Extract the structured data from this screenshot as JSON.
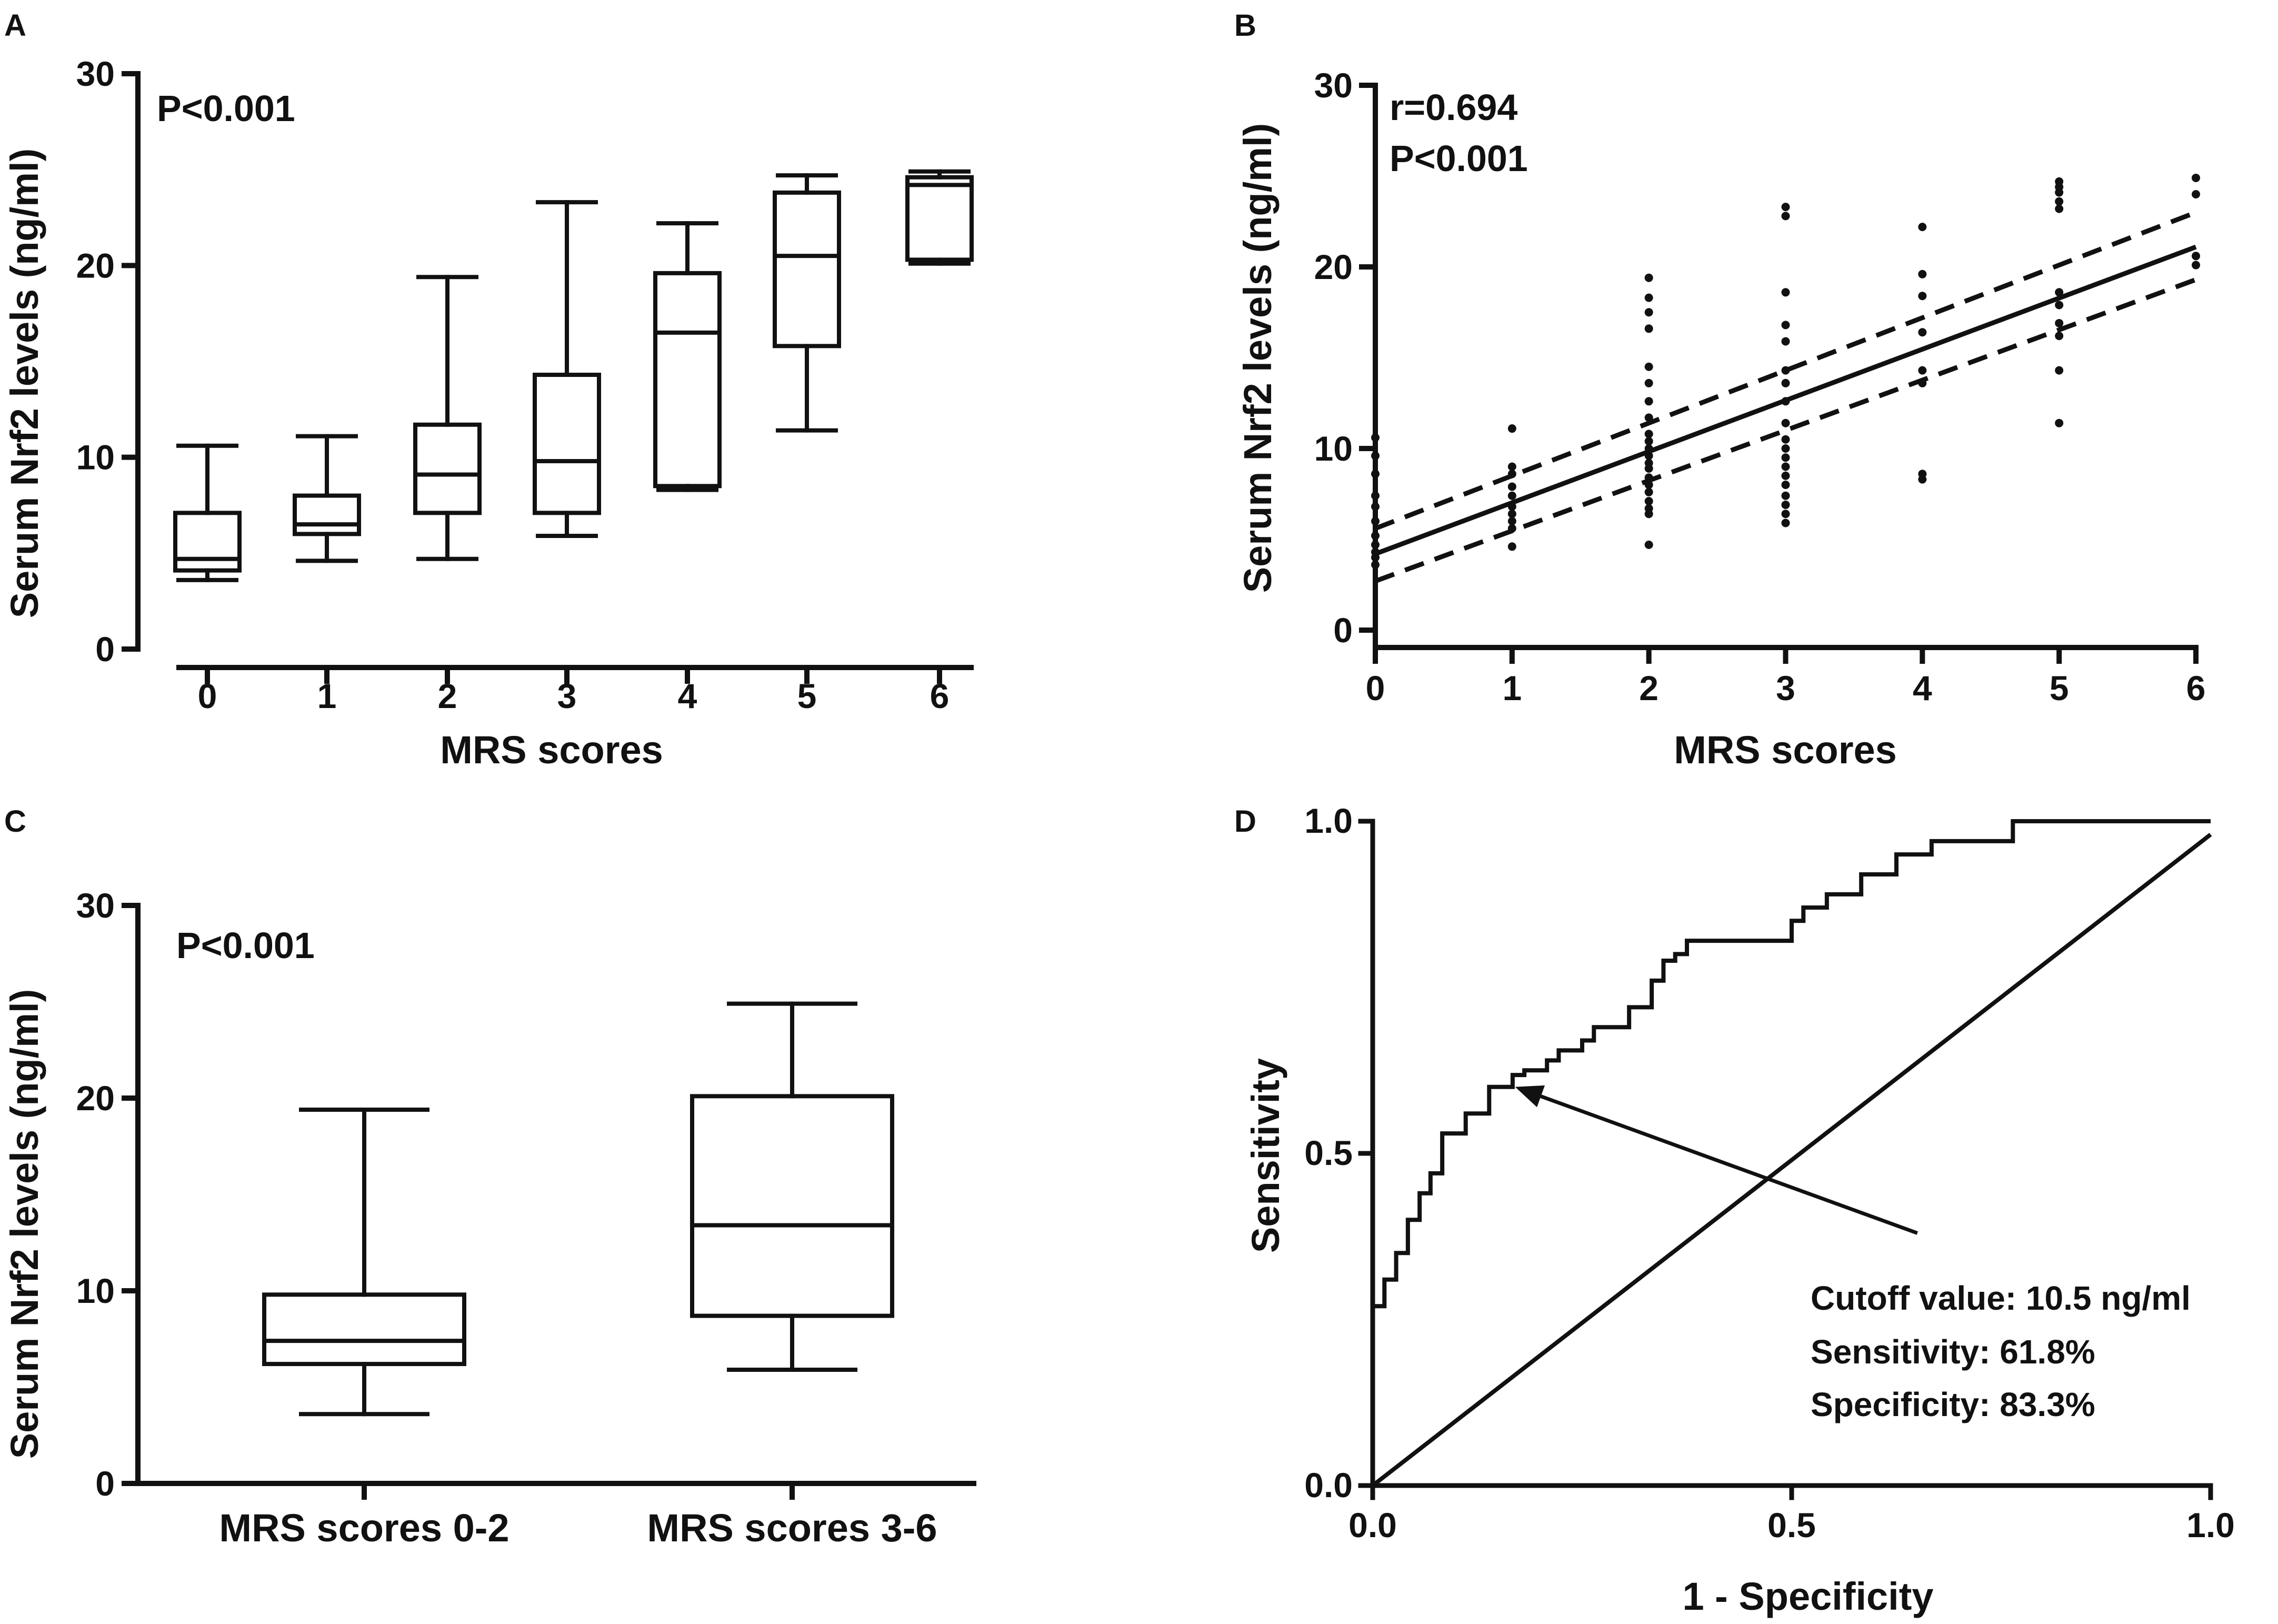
{
  "figure": {
    "background": "#ffffff",
    "ink": "#111111"
  },
  "chart_data": [
    {
      "panel": "A",
      "type": "box",
      "title": "",
      "annotation": "P<0.001",
      "xlabel": "MRS scores",
      "ylabel": "Serum Nrf2 levels (ng/ml)",
      "ylim": [
        0,
        30
      ],
      "yticks": [
        0,
        10,
        20,
        30
      ],
      "categories": [
        "0",
        "1",
        "2",
        "3",
        "4",
        "5",
        "6"
      ],
      "boxes": [
        {
          "category": "0",
          "min": 3.6,
          "q1": 4.1,
          "median": 4.7,
          "q3": 7.1,
          "max": 10.6
        },
        {
          "category": "1",
          "min": 4.6,
          "q1": 6.0,
          "median": 6.5,
          "q3": 8.0,
          "max": 11.1
        },
        {
          "category": "2",
          "min": 4.7,
          "q1": 7.1,
          "median": 9.1,
          "q3": 11.7,
          "max": 19.4
        },
        {
          "category": "3",
          "min": 5.9,
          "q1": 7.1,
          "median": 9.8,
          "q3": 14.3,
          "max": 23.3
        },
        {
          "category": "4",
          "min": 8.3,
          "q1": 8.5,
          "median": 16.5,
          "q3": 19.6,
          "max": 22.2
        },
        {
          "category": "5",
          "min": 11.4,
          "q1": 15.8,
          "median": 20.5,
          "q3": 23.8,
          "max": 24.7
        },
        {
          "category": "6",
          "min": 20.1,
          "q1": 20.3,
          "median": 24.2,
          "q3": 24.6,
          "max": 24.9
        }
      ]
    },
    {
      "panel": "B",
      "type": "scatter",
      "title": "",
      "annotations": [
        "r=0.694",
        "P<0.001"
      ],
      "xlabel": "MRS scores",
      "ylabel": "Serum Nrf2 levels (ng/ml)",
      "xlim": [
        0,
        6
      ],
      "ylim": [
        0,
        30
      ],
      "xticks": [
        0,
        1,
        2,
        3,
        4,
        5,
        6
      ],
      "yticks": [
        0,
        10,
        20,
        30
      ],
      "points": [
        [
          0,
          3.6
        ],
        [
          0,
          4.0
        ],
        [
          0,
          4.3
        ],
        [
          0,
          4.7
        ],
        [
          0,
          5.2
        ],
        [
          0,
          6.0
        ],
        [
          0,
          6.8
        ],
        [
          0,
          7.4
        ],
        [
          0,
          8.6
        ],
        [
          0,
          9.6
        ],
        [
          0,
          10.6
        ],
        [
          1,
          4.6
        ],
        [
          1,
          5.6
        ],
        [
          1,
          6.0
        ],
        [
          1,
          6.4
        ],
        [
          1,
          6.8
        ],
        [
          1,
          7.4
        ],
        [
          1,
          7.9
        ],
        [
          1,
          8.6
        ],
        [
          1,
          9.0
        ],
        [
          1,
          11.1
        ],
        [
          2,
          4.7
        ],
        [
          2,
          6.4
        ],
        [
          2,
          6.7
        ],
        [
          2,
          7.1
        ],
        [
          2,
          7.6
        ],
        [
          2,
          8.0
        ],
        [
          2,
          8.4
        ],
        [
          2,
          8.9
        ],
        [
          2,
          9.2
        ],
        [
          2,
          9.6
        ],
        [
          2,
          10.0
        ],
        [
          2,
          10.4
        ],
        [
          2,
          10.8
        ],
        [
          2,
          11.7
        ],
        [
          2,
          12.6
        ],
        [
          2,
          13.6
        ],
        [
          2,
          14.5
        ],
        [
          2,
          16.6
        ],
        [
          2,
          17.5
        ],
        [
          2,
          18.3
        ],
        [
          2,
          19.4
        ],
        [
          3,
          5.9
        ],
        [
          3,
          6.4
        ],
        [
          3,
          6.9
        ],
        [
          3,
          7.4
        ],
        [
          3,
          8.0
        ],
        [
          3,
          8.5
        ],
        [
          3,
          9.0
        ],
        [
          3,
          9.5
        ],
        [
          3,
          10.0
        ],
        [
          3,
          10.5
        ],
        [
          3,
          11.4
        ],
        [
          3,
          12.6
        ],
        [
          3,
          13.6
        ],
        [
          3,
          14.3
        ],
        [
          3,
          15.9
        ],
        [
          3,
          16.8
        ],
        [
          3,
          18.6
        ],
        [
          3,
          22.8
        ],
        [
          3,
          23.3
        ],
        [
          4,
          8.3
        ],
        [
          4,
          8.6
        ],
        [
          4,
          13.6
        ],
        [
          4,
          14.3
        ],
        [
          4,
          16.4
        ],
        [
          4,
          18.4
        ],
        [
          4,
          19.6
        ],
        [
          4,
          22.2
        ],
        [
          5,
          11.4
        ],
        [
          5,
          14.3
        ],
        [
          5,
          16.2
        ],
        [
          5,
          16.9
        ],
        [
          5,
          17.9
        ],
        [
          5,
          18.6
        ],
        [
          5,
          23.2
        ],
        [
          5,
          23.6
        ],
        [
          5,
          24.1
        ],
        [
          5,
          24.4
        ],
        [
          5,
          24.7
        ],
        [
          6,
          20.1
        ],
        [
          6,
          20.6
        ],
        [
          6,
          24.0
        ],
        [
          6,
          24.9
        ]
      ],
      "fit_line": {
        "x": [
          0,
          6
        ],
        "y": [
          4.2,
          21.1
        ]
      },
      "ci_upper": {
        "x": [
          0,
          6
        ],
        "y": [
          5.6,
          23.0
        ]
      },
      "ci_lower": {
        "x": [
          0,
          6
        ],
        "y": [
          2.7,
          19.3
        ]
      }
    },
    {
      "panel": "C",
      "type": "box",
      "title": "",
      "annotation": "P<0.001",
      "xlabel": "",
      "ylabel": "Serum Nrf2 levels (ng/ml)",
      "ylim": [
        0,
        30
      ],
      "yticks": [
        0,
        10,
        20,
        30
      ],
      "categories": [
        "MRS scores 0-2",
        "MRS scores 3-6"
      ],
      "boxes": [
        {
          "category": "MRS scores 0-2",
          "min": 3.6,
          "q1": 6.2,
          "median": 7.4,
          "q3": 9.8,
          "max": 19.4
        },
        {
          "category": "MRS scores 3-6",
          "min": 5.9,
          "q1": 8.7,
          "median": 13.4,
          "q3": 20.1,
          "max": 24.9
        }
      ]
    },
    {
      "panel": "D",
      "type": "line",
      "title": "",
      "xlabel": "1 - Specificity",
      "ylabel": "Sensitivity",
      "xlim": [
        0,
        1
      ],
      "ylim": [
        0,
        1
      ],
      "xticks": [
        "0.0",
        "0.5",
        "1.0"
      ],
      "yticks": [
        "0.0",
        "0.5",
        "1.0"
      ],
      "roc_curve": {
        "x": [
          0,
          0,
          0.014,
          0.014,
          0.028,
          0.028,
          0.042,
          0.042,
          0.056,
          0.056,
          0.069,
          0.069,
          0.083,
          0.083,
          0.111,
          0.111,
          0.139,
          0.139,
          0.167,
          0.167,
          0.181,
          0.181,
          0.208,
          0.208,
          0.222,
          0.222,
          0.25,
          0.25,
          0.264,
          0.264,
          0.306,
          0.306,
          0.333,
          0.333,
          0.347,
          0.347,
          0.361,
          0.361,
          0.375,
          0.375,
          0.5,
          0.5,
          0.514,
          0.514,
          0.542,
          0.542,
          0.583,
          0.583,
          0.625,
          0.625,
          0.667,
          0.667,
          0.764,
          0.764,
          1.0
        ],
        "y": [
          0,
          0.27,
          0.27,
          0.31,
          0.31,
          0.35,
          0.35,
          0.4,
          0.4,
          0.44,
          0.44,
          0.47,
          0.47,
          0.53,
          0.53,
          0.56,
          0.56,
          0.6,
          0.6,
          0.618,
          0.618,
          0.625,
          0.625,
          0.64,
          0.64,
          0.655,
          0.655,
          0.67,
          0.67,
          0.69,
          0.69,
          0.72,
          0.72,
          0.76,
          0.76,
          0.79,
          0.79,
          0.8,
          0.8,
          0.82,
          0.82,
          0.85,
          0.85,
          0.87,
          0.87,
          0.89,
          0.89,
          0.92,
          0.92,
          0.95,
          0.95,
          0.97,
          0.97,
          1.0,
          1.0
        ]
      },
      "reference_line": {
        "x": [
          0,
          1
        ],
        "y": [
          0,
          0.98
        ]
      },
      "arrow": {
        "from": [
          0.65,
          0.38
        ],
        "to": [
          0.17,
          0.6
        ]
      },
      "annotations": [
        "Cutoff value: 10.5 ng/ml",
        "Sensitivity: 61.8%",
        "Specificity: 83.3%"
      ]
    }
  ]
}
